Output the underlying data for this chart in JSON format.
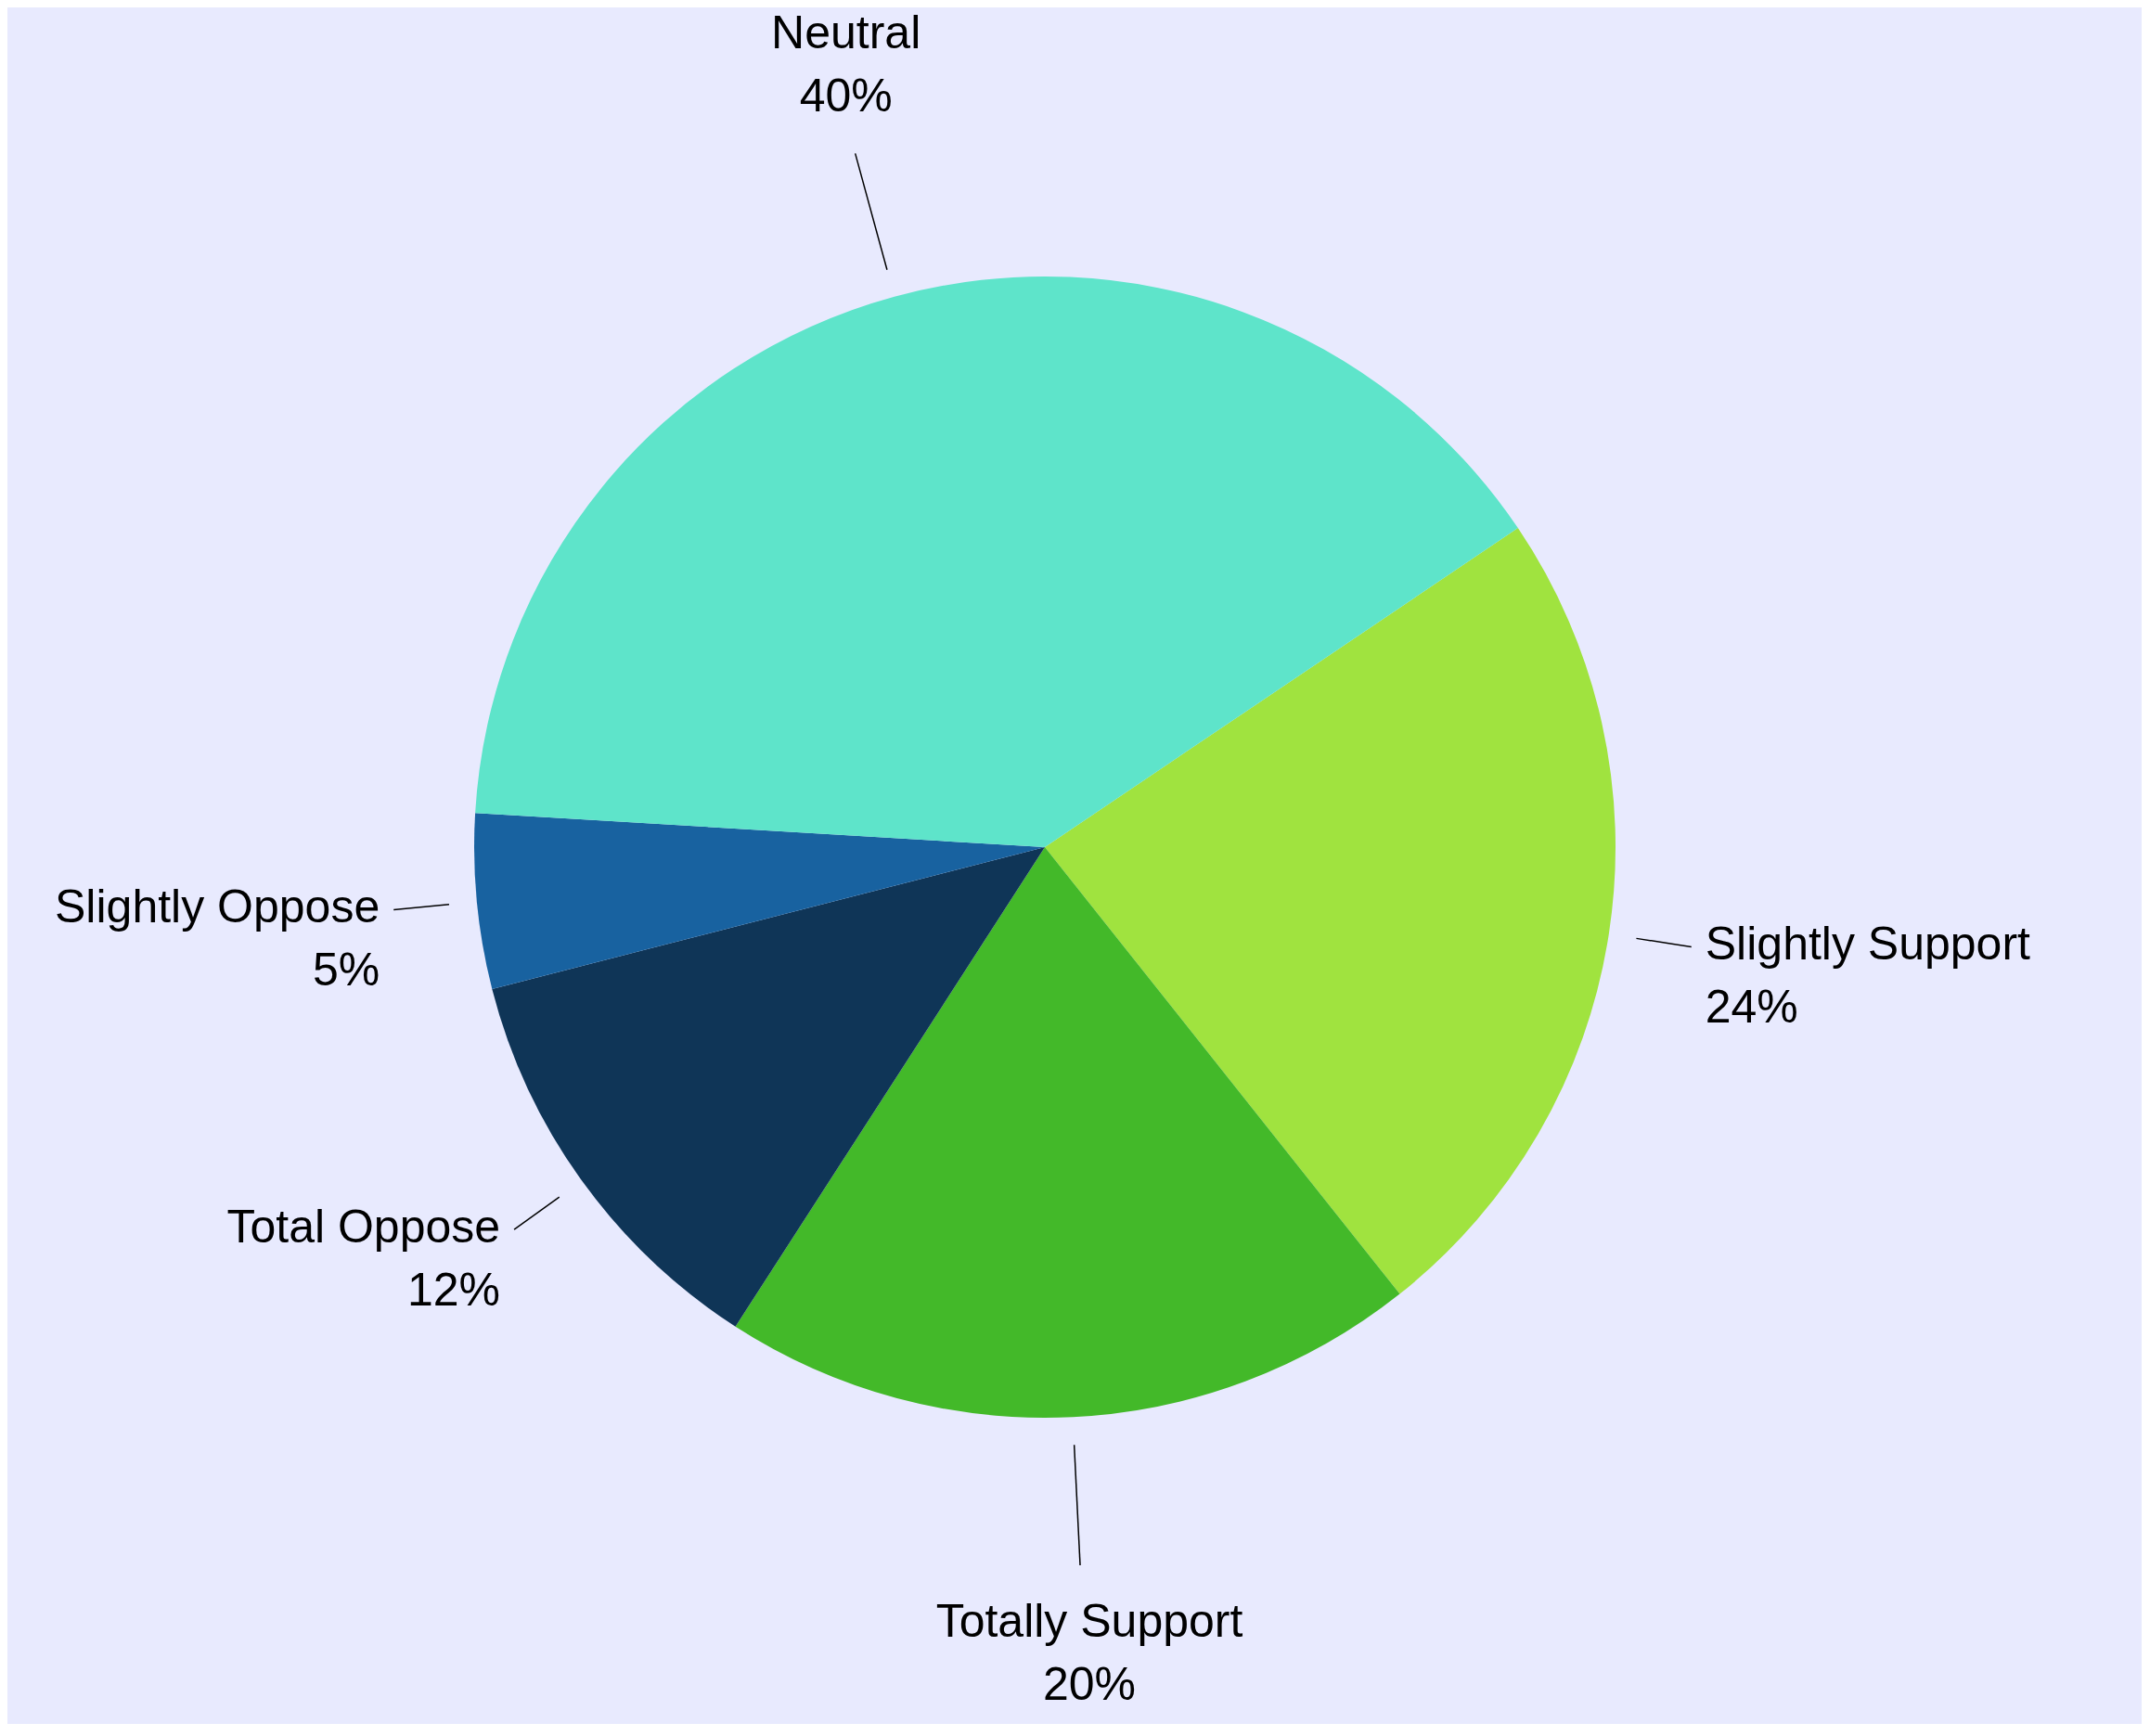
{
  "chart_data": {
    "type": "pie",
    "categories": [
      "Slightly Support",
      "Totally Support",
      "Total Oppose",
      "Slightly Oppose",
      "Neutral"
    ],
    "values": [
      24,
      20,
      12,
      5,
      40
    ],
    "colors": [
      "#a0e33f",
      "#43b929",
      "#0f3557",
      "#1862a0",
      "#5ee4ca"
    ],
    "value_labels": [
      "24%",
      "20%",
      "12%",
      "5%",
      "40%"
    ],
    "legend": false
  }
}
